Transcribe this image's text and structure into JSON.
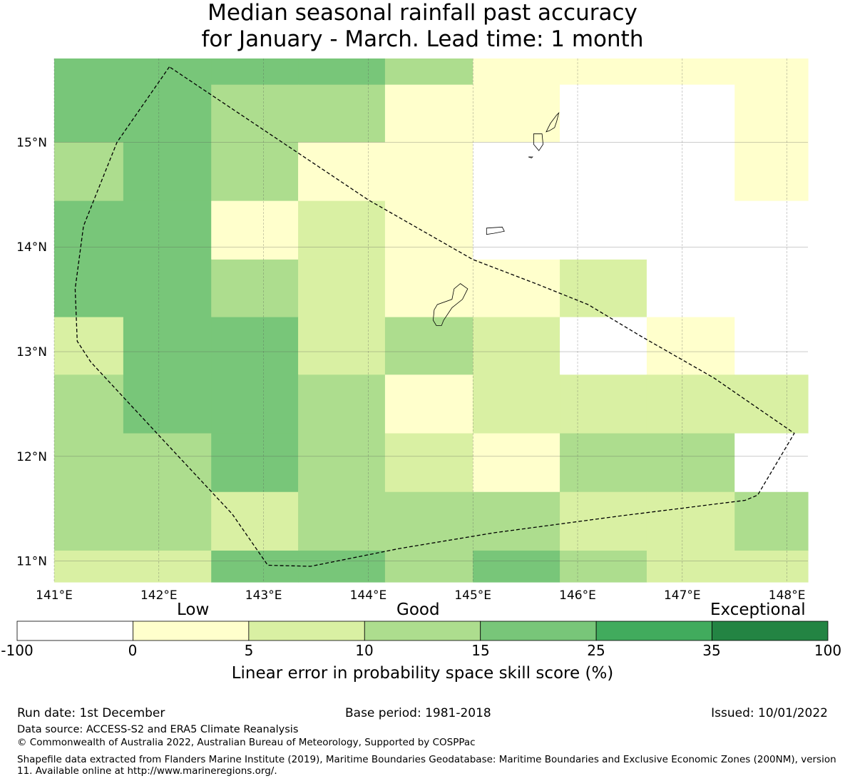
{
  "title_line1": "Median seasonal rainfall past accuracy",
  "title_line2": "for January - March. Lead time: 1 month",
  "map": {
    "lon_range": [
      141.0,
      148.2
    ],
    "lat_range": [
      10.8,
      15.8
    ],
    "x_ticks": [
      "141°E",
      "142°E",
      "143°E",
      "144°E",
      "145°E",
      "146°E",
      "147°E",
      "148°E"
    ],
    "y_ticks": [
      "15°N",
      "14°N",
      "13°N",
      "12°N",
      "11°N"
    ],
    "cell_boundaries_lon": [
      141.0,
      141.66,
      142.5,
      143.33,
      144.16,
      145.0,
      145.83,
      146.66,
      147.5,
      148.2
    ],
    "cell_boundaries_lat": [
      10.8,
      11.1,
      11.66,
      12.22,
      12.78,
      13.33,
      13.88,
      14.44,
      15.0,
      15.55,
      15.8
    ],
    "skill_classes_rows_top_to_bottom": [
      [
        4,
        4,
        4,
        4,
        3,
        1,
        1,
        1,
        1
      ],
      [
        4,
        4,
        3,
        3,
        1,
        1,
        0,
        0,
        1
      ],
      [
        3,
        4,
        3,
        1,
        1,
        0,
        0,
        0,
        1
      ],
      [
        4,
        4,
        1,
        2,
        1,
        0,
        0,
        0,
        0
      ],
      [
        4,
        4,
        3,
        2,
        1,
        1,
        2,
        0,
        0
      ],
      [
        2,
        4,
        4,
        2,
        3,
        2,
        0,
        1,
        0
      ],
      [
        3,
        4,
        4,
        3,
        1,
        2,
        2,
        2,
        2
      ],
      [
        3,
        3,
        4,
        3,
        2,
        1,
        3,
        3,
        0
      ],
      [
        3,
        3,
        2,
        3,
        3,
        3,
        2,
        2,
        3
      ],
      [
        2,
        2,
        4,
        4,
        3,
        4,
        3,
        2,
        2
      ]
    ],
    "eez_boundary": [
      [
        142.1,
        15.72
      ],
      [
        141.6,
        15.0
      ],
      [
        141.28,
        14.2
      ],
      [
        141.2,
        13.6
      ],
      [
        141.22,
        13.1
      ],
      [
        141.35,
        12.9
      ],
      [
        142.0,
        12.2
      ],
      [
        142.7,
        11.45
      ],
      [
        143.04,
        10.96
      ],
      [
        143.45,
        10.95
      ],
      [
        144.3,
        11.12
      ],
      [
        145.2,
        11.27
      ],
      [
        146.4,
        11.43
      ],
      [
        147.6,
        11.58
      ],
      [
        147.72,
        11.63
      ],
      [
        148.07,
        12.22
      ],
      [
        147.3,
        12.75
      ],
      [
        146.6,
        13.15
      ],
      [
        146.1,
        13.45
      ],
      [
        145.6,
        13.65
      ],
      [
        145.0,
        13.88
      ],
      [
        144.0,
        14.45
      ],
      [
        142.1,
        15.72
      ]
    ]
  },
  "colorbar": {
    "categories": [
      "Low",
      "Good",
      "Exceptional"
    ],
    "colors": [
      "#ffffff",
      "#ffffcc",
      "#d9f0a3",
      "#addd8e",
      "#78c679",
      "#41ab5d",
      "#238443"
    ],
    "ticks": [
      "-100",
      "0",
      "5",
      "10",
      "15",
      "25",
      "35",
      "100"
    ],
    "label": "Linear error in probability space skill score (%)"
  },
  "footer": {
    "run_date": "Run date: 1st December",
    "base_period": "Base period: 1981-2018",
    "issued": "Issued: 10/01/2022",
    "data_source": "Data source: ACCESS-S2 and ERA5 Climate Reanalysis",
    "copyright": "© Commonwealth of Australia 2022, Australian Bureau of Meteorology, Supported by COSPPac",
    "shapefile_note": "Shapefile data extracted from Flanders Marine Institute (2019), Maritime Boundaries Geodatabase: Maritime Boundaries and Exclusive Economic Zones (200NM), version 11. Available online at http://www.marineregions.org/."
  }
}
